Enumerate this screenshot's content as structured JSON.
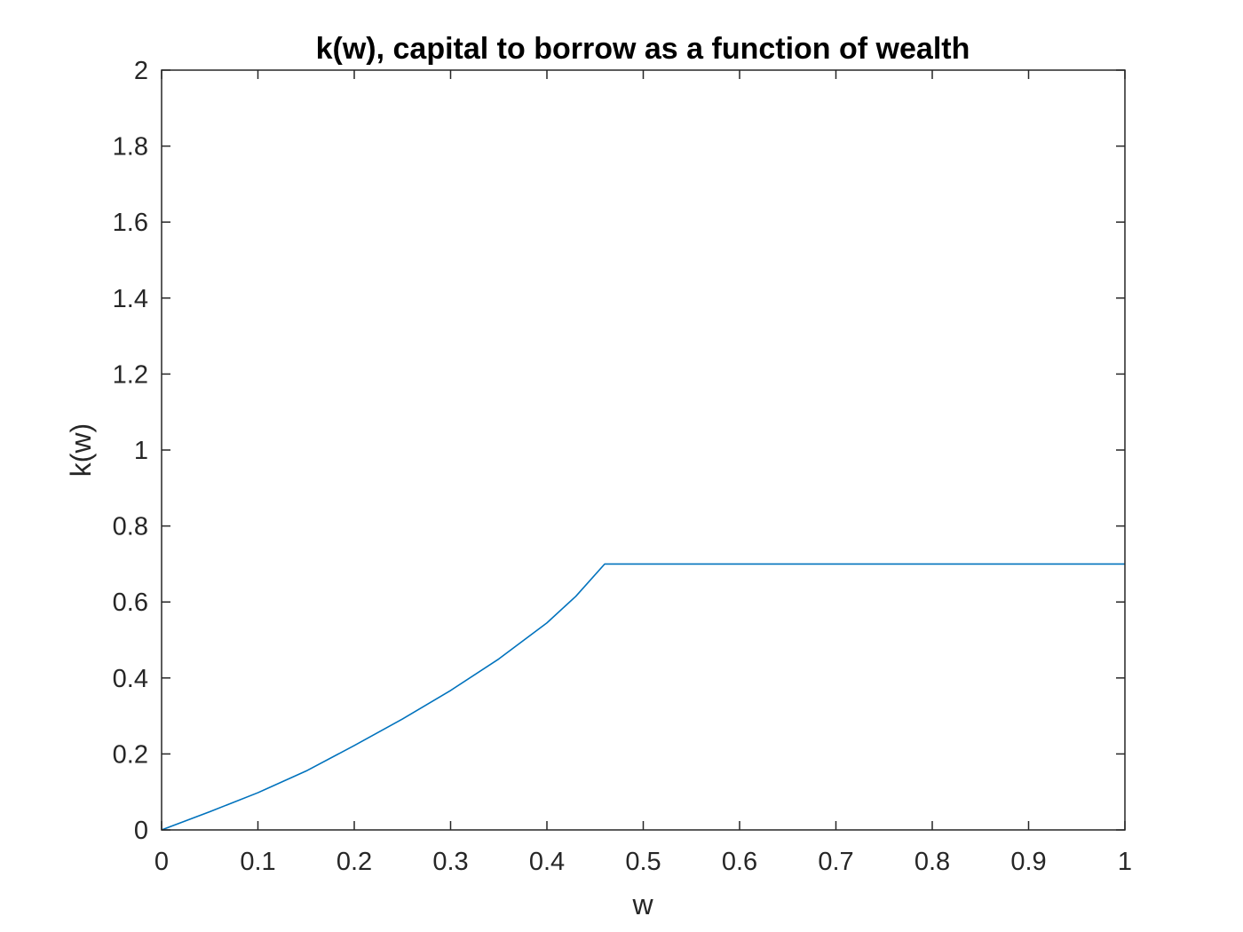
{
  "chart_data": {
    "type": "line",
    "title": "k(w), capital to borrow as a function of wealth",
    "xlabel": "w",
    "ylabel": "k(w)",
    "xlim": [
      0,
      1
    ],
    "ylim": [
      0,
      2
    ],
    "xticks": [
      "0",
      "0.1",
      "0.2",
      "0.3",
      "0.4",
      "0.5",
      "0.6",
      "0.7",
      "0.8",
      "0.9",
      "1"
    ],
    "yticks": [
      "0",
      "0.2",
      "0.4",
      "0.6",
      "0.8",
      "1",
      "1.2",
      "1.4",
      "1.6",
      "1.8",
      "2"
    ],
    "grid": false,
    "box": true,
    "series": [
      {
        "color": "#0072BD",
        "x": [
          0,
          0.05,
          0.1,
          0.15,
          0.2,
          0.25,
          0.3,
          0.35,
          0.4,
          0.43,
          0.46,
          0.5,
          0.6,
          0.7,
          0.8,
          0.9,
          1.0
        ],
        "y": [
          0,
          0.048,
          0.098,
          0.155,
          0.222,
          0.292,
          0.367,
          0.45,
          0.545,
          0.615,
          0.7,
          0.7,
          0.7,
          0.7,
          0.7,
          0.7,
          0.7
        ]
      }
    ]
  }
}
